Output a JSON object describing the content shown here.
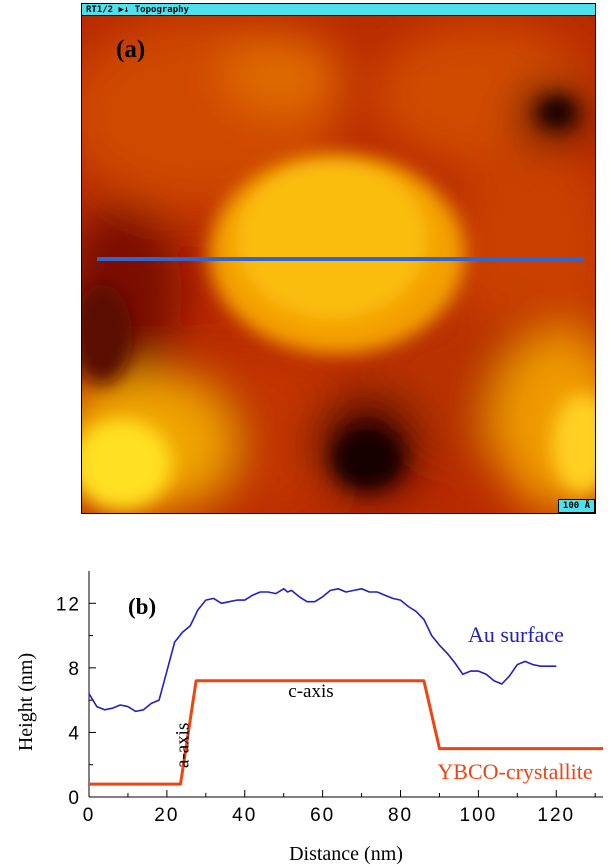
{
  "stm_image": {
    "header_text": "RT1/2 ▶↓ Topography",
    "scale_text": "100 Å",
    "panel_label": "(a)",
    "line_color": "#3366cc"
  },
  "chart_data": {
    "type": "line",
    "panel_label": "(b)",
    "title": "",
    "xlabel": "Distance (nm)",
    "ylabel": "Height (nm)",
    "xlim": [
      0,
      132
    ],
    "ylim": [
      0,
      14
    ],
    "xticks": [
      0,
      20,
      40,
      60,
      80,
      100,
      120
    ],
    "yticks": [
      0,
      4,
      8,
      12
    ],
    "series": [
      {
        "name": "Au surface",
        "color": "#2222bb",
        "x": [
          0,
          2,
          4,
          6,
          8,
          10,
          12,
          14,
          16,
          18,
          20,
          22,
          24,
          26,
          28,
          30,
          32,
          34,
          36,
          38,
          40,
          42,
          44,
          46,
          48,
          50,
          51,
          52,
          54,
          56,
          58,
          60,
          62,
          64,
          66,
          68,
          70,
          72,
          74,
          76,
          78,
          80,
          82,
          84,
          86,
          88,
          90,
          92,
          94,
          96,
          98,
          100,
          102,
          104,
          106,
          108,
          110,
          112,
          114,
          116,
          118,
          120
        ],
        "y": [
          6.4,
          5.6,
          5.4,
          5.5,
          5.7,
          5.6,
          5.3,
          5.4,
          5.8,
          6.0,
          7.8,
          9.6,
          10.2,
          10.6,
          11.6,
          12.2,
          12.3,
          12.0,
          12.1,
          12.2,
          12.2,
          12.5,
          12.7,
          12.7,
          12.6,
          12.9,
          12.7,
          12.8,
          12.4,
          12.1,
          12.1,
          12.4,
          12.8,
          12.9,
          12.7,
          12.8,
          12.9,
          12.7,
          12.7,
          12.5,
          12.3,
          12.2,
          11.8,
          11.5,
          11.0,
          10.0,
          9.4,
          8.9,
          8.3,
          7.6,
          7.8,
          7.8,
          7.6,
          7.2,
          7.0,
          7.5,
          8.2,
          8.4,
          8.2,
          8.1,
          8.1,
          8.1
        ]
      },
      {
        "name": "YBCO-crystallite",
        "color": "#ee4411",
        "x": [
          0,
          23.5,
          27.5,
          86,
          90,
          132
        ],
        "y": [
          0.8,
          0.8,
          7.2,
          7.2,
          3.0,
          3.0
        ]
      }
    ],
    "annotations": [
      {
        "text": "c-axis",
        "x": 57,
        "y": 6.2
      },
      {
        "text": "a-axis",
        "x": 25.5,
        "y": 3.2,
        "rotation": -90
      }
    ]
  }
}
